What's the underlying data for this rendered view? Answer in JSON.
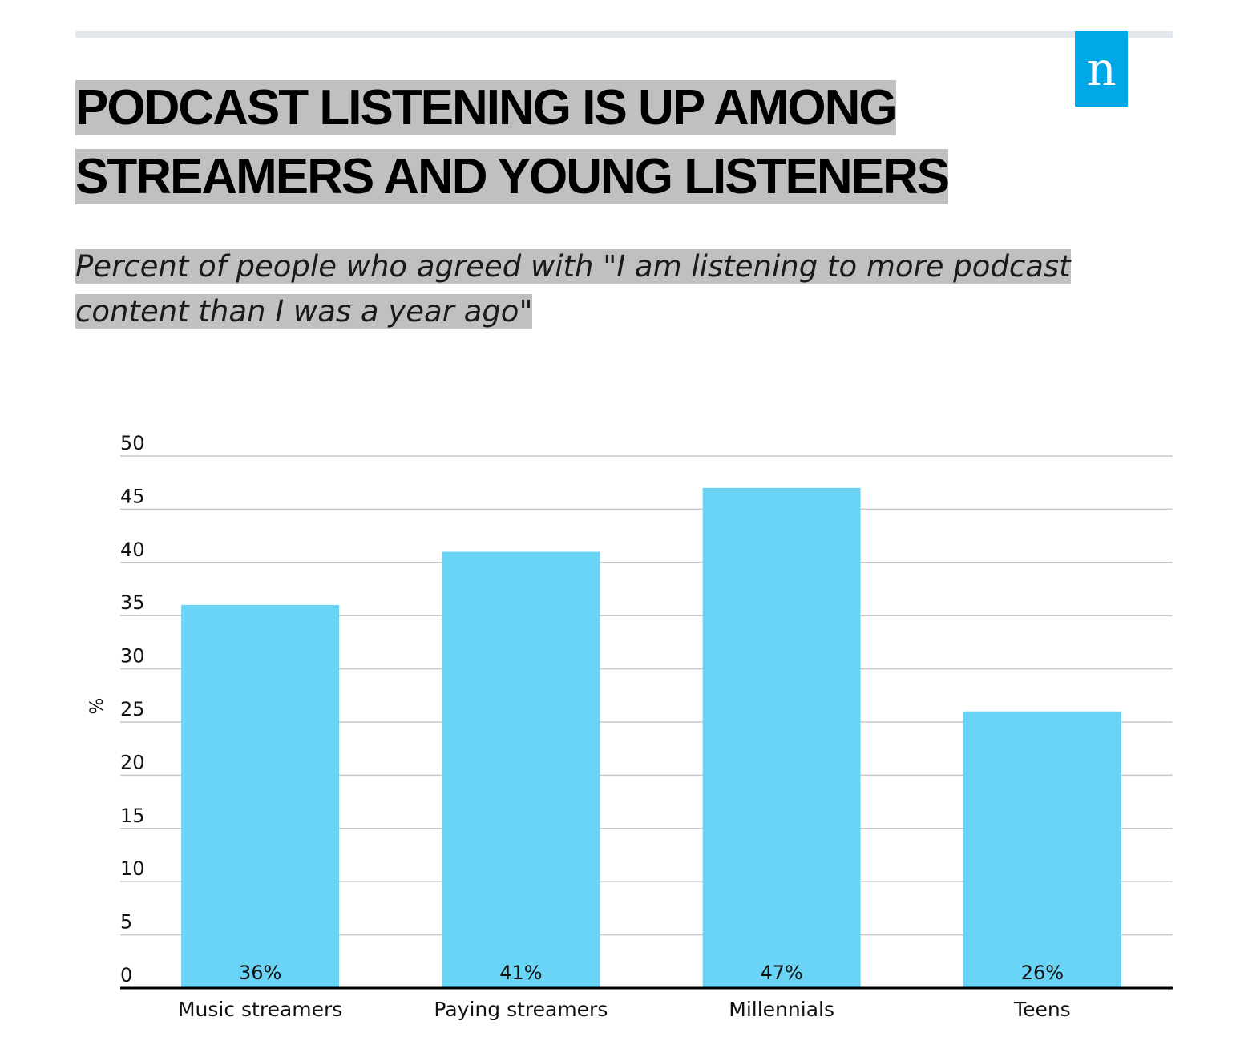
{
  "brand": {
    "logo_text": "n",
    "logo_color": "#00a8e8"
  },
  "chart_data": {
    "type": "bar",
    "title": "PODCAST LISTENING IS UP AMONG STREAMERS AND YOUNG LISTENERS",
    "subtitle": "Percent of people who agreed with \"I am listening to more podcast content than I was a year ago\"",
    "categories": [
      "Music streamers",
      "Paying streamers",
      "Millennials",
      "Teens"
    ],
    "values": [
      36,
      41,
      47,
      26
    ],
    "data_labels": [
      "36%",
      "41%",
      "47%",
      "26%"
    ],
    "xlabel": "",
    "ylabel": "%",
    "ylim": [
      0,
      50
    ],
    "yticks": [
      0,
      5,
      10,
      15,
      20,
      25,
      30,
      35,
      40,
      45,
      50
    ],
    "grid": true,
    "bar_color": "#6ad4f6"
  }
}
